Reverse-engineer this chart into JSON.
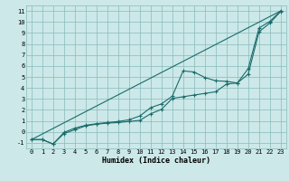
{
  "xlabel": "Humidex (Indice chaleur)",
  "bg_color": "#cce8e8",
  "grid_color": "#88bbbb",
  "line_color": "#1a6b6b",
  "xlim": [
    -0.5,
    23.5
  ],
  "ylim": [
    -1.5,
    11.5
  ],
  "xticks": [
    0,
    1,
    2,
    3,
    4,
    5,
    6,
    7,
    8,
    9,
    10,
    11,
    12,
    13,
    14,
    15,
    16,
    17,
    18,
    19,
    20,
    21,
    22,
    23
  ],
  "yticks": [
    -1,
    0,
    1,
    2,
    3,
    4,
    5,
    6,
    7,
    8,
    9,
    10,
    11
  ],
  "line1_x": [
    0,
    1,
    2,
    3,
    4,
    5,
    6,
    7,
    8,
    9,
    10,
    11,
    12,
    13,
    14,
    15,
    16,
    17,
    18,
    19,
    20,
    21,
    22,
    23
  ],
  "line1_y": [
    -0.7,
    -0.7,
    -1.1,
    -0.15,
    0.2,
    0.55,
    0.7,
    0.8,
    0.85,
    0.95,
    1.05,
    1.65,
    2.05,
    3.05,
    3.2,
    3.35,
    3.5,
    3.65,
    4.35,
    4.45,
    5.25,
    9.1,
    9.9,
    10.95
  ],
  "line2_x": [
    0,
    1,
    2,
    3,
    4,
    5,
    6,
    7,
    8,
    9,
    10,
    11,
    12,
    13,
    14,
    15,
    16,
    17,
    18,
    19,
    20,
    21,
    22,
    23
  ],
  "line2_y": [
    -0.7,
    -0.7,
    -1.1,
    -0.05,
    0.35,
    0.6,
    0.75,
    0.85,
    0.95,
    1.1,
    1.45,
    2.2,
    2.55,
    3.25,
    5.55,
    5.45,
    4.95,
    4.65,
    4.6,
    4.45,
    5.75,
    9.45,
    10.05,
    11.0
  ],
  "line3_x": [
    0,
    23
  ],
  "line3_y": [
    -0.7,
    11.0
  ]
}
